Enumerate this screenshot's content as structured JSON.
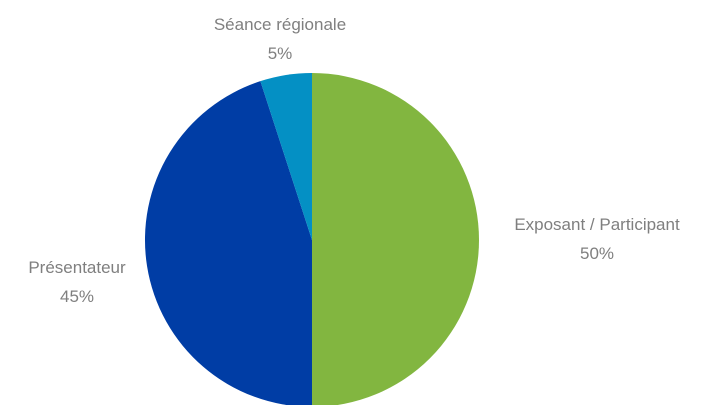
{
  "chart_data": {
    "type": "pie",
    "title": "",
    "start_angle_deg": 0,
    "direction": "clockwise",
    "slices": [
      {
        "label": "Exposant / Participant",
        "value": 50,
        "value_label": "50%",
        "color": "#82b640"
      },
      {
        "label": "Présentateur",
        "value": 45,
        "value_label": "45%",
        "color": "#003da5"
      },
      {
        "label": "Séance régionale",
        "value": 5,
        "value_label": "5%",
        "color": "#0490c4"
      }
    ],
    "legend": "none",
    "label_color": "#7f7f7f"
  }
}
